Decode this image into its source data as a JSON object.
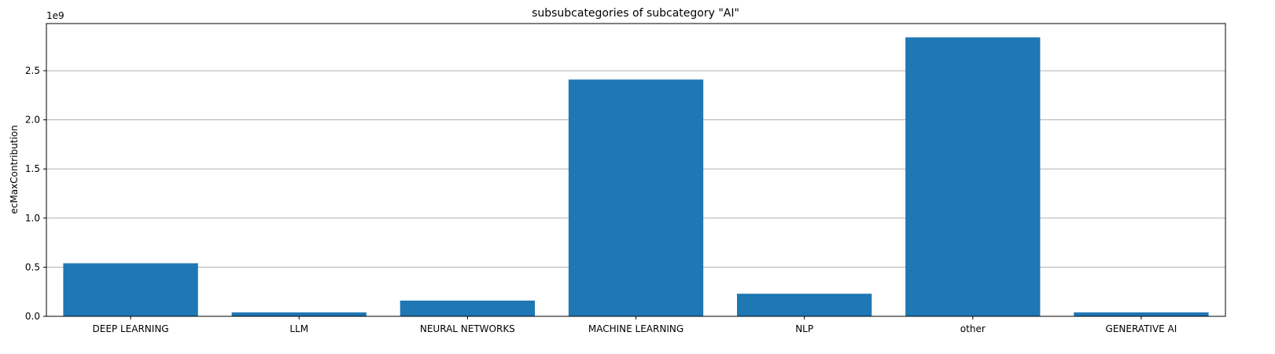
{
  "chart_data": {
    "type": "bar",
    "title": "subsubcategories of subcategory \"AI\"",
    "xlabel": "",
    "ylabel": "ecMaxContribution",
    "y_multiplier_label": "1e9",
    "categories": [
      "DEEP LEARNING",
      "LLM",
      "NEURAL NETWORKS",
      "MACHINE LEARNING",
      "NLP",
      "other",
      "GENERATIVE AI"
    ],
    "values": [
      0.54,
      0.04,
      0.16,
      2.41,
      0.23,
      2.84,
      0.04
    ],
    "ylim": [
      0,
      2.98
    ],
    "yticks": [
      0.0,
      0.5,
      1.0,
      1.5,
      2.0,
      2.5
    ],
    "ytick_labels": [
      "0.0",
      "0.5",
      "1.0",
      "1.5",
      "2.0",
      "2.5"
    ],
    "grid": "y",
    "bar_color": "#1f77b4"
  }
}
